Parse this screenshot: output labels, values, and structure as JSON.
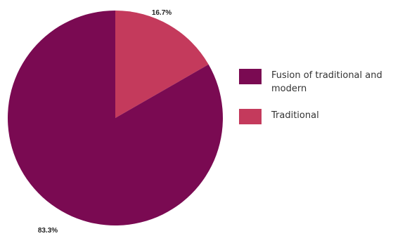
{
  "chart_data": {
    "type": "pie",
    "slices": [
      {
        "label": "Fusion of traditional and modern",
        "value": 83.3,
        "display": "83.3%",
        "color": "#7a0a52"
      },
      {
        "label": "Traditional",
        "value": 16.7,
        "display": "16.7%",
        "color": "#c43a5c"
      }
    ],
    "legend_placement": "right"
  }
}
